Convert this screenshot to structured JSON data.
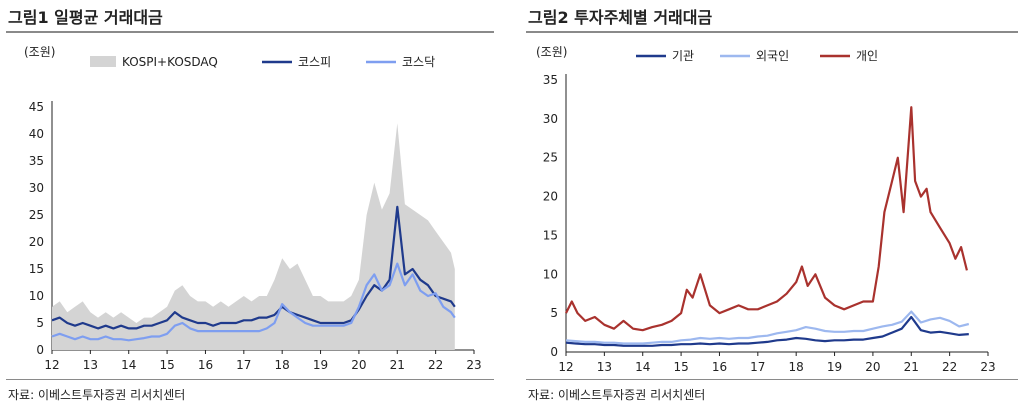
{
  "figures": [
    {
      "title": "그림1 일평균 거래대금",
      "source": "자료: 이베스트투자증권 리서치센터"
    },
    {
      "title": "그림2 투자주체별 거래대금",
      "source": "자료: 이베스트투자증권 리서치센터"
    }
  ],
  "chart_data": [
    {
      "type": "line",
      "unit": "(조원)",
      "x_ticks": [
        "12",
        "13",
        "14",
        "15",
        "16",
        "17",
        "18",
        "19",
        "20",
        "21",
        "22",
        "23"
      ],
      "xlim": [
        12,
        23
      ],
      "ylim": [
        0,
        45
      ],
      "y_ticks": [
        0,
        5,
        10,
        15,
        20,
        25,
        30,
        35,
        40,
        45
      ],
      "legend_placement": "top",
      "series": [
        {
          "name": "KOSPI+KOSDAQ",
          "style": "area",
          "color": "#d4d4d4",
          "x": [
            12.0,
            12.2,
            12.4,
            12.6,
            12.8,
            13.0,
            13.2,
            13.4,
            13.6,
            13.8,
            14.0,
            14.2,
            14.4,
            14.6,
            14.8,
            15.0,
            15.2,
            15.4,
            15.6,
            15.8,
            16.0,
            16.2,
            16.4,
            16.6,
            16.8,
            17.0,
            17.2,
            17.4,
            17.6,
            17.8,
            18.0,
            18.2,
            18.4,
            18.6,
            18.8,
            19.0,
            19.2,
            19.4,
            19.6,
            19.8,
            20.0,
            20.2,
            20.4,
            20.6,
            20.8,
            21.0,
            21.2,
            21.4,
            21.6,
            21.8,
            22.0,
            22.2,
            22.4,
            22.5
          ],
          "values": [
            8,
            9,
            7,
            8,
            9,
            7,
            6,
            7,
            6,
            7,
            6,
            5,
            6,
            6,
            7,
            8,
            11,
            12,
            10,
            9,
            9,
            8,
            9,
            8,
            9,
            10,
            9,
            10,
            10,
            13,
            17,
            15,
            16,
            13,
            10,
            10,
            9,
            9,
            9,
            10,
            13,
            25,
            31,
            26,
            29,
            42,
            27,
            26,
            25,
            24,
            22,
            20,
            18,
            15
          ]
        },
        {
          "name": "코스피",
          "style": "line",
          "color": "#1f3a8c",
          "x": [
            12.0,
            12.2,
            12.4,
            12.6,
            12.8,
            13.0,
            13.2,
            13.4,
            13.6,
            13.8,
            14.0,
            14.2,
            14.4,
            14.6,
            14.8,
            15.0,
            15.2,
            15.4,
            15.6,
            15.8,
            16.0,
            16.2,
            16.4,
            16.6,
            16.8,
            17.0,
            17.2,
            17.4,
            17.6,
            17.8,
            18.0,
            18.2,
            18.4,
            18.6,
            18.8,
            19.0,
            19.2,
            19.4,
            19.6,
            19.8,
            20.0,
            20.2,
            20.4,
            20.6,
            20.8,
            21.0,
            21.2,
            21.4,
            21.6,
            21.8,
            22.0,
            22.2,
            22.4,
            22.5
          ],
          "values": [
            5.5,
            6,
            5,
            4.5,
            5,
            4.5,
            4,
            4.5,
            4,
            4.5,
            4,
            4,
            4.5,
            4.5,
            5,
            5.5,
            7,
            6,
            5.5,
            5,
            5,
            4.5,
            5,
            5,
            5,
            5.5,
            5.5,
            6,
            6,
            6.5,
            8,
            7,
            6.5,
            6,
            5.5,
            5,
            5,
            5,
            5,
            5.5,
            7.5,
            10,
            12,
            11,
            13,
            26.5,
            14,
            15,
            13,
            12,
            10,
            9.5,
            9,
            8
          ]
        },
        {
          "name": "코스닥",
          "style": "line",
          "color": "#7e9ef0",
          "x": [
            12.0,
            12.2,
            12.4,
            12.6,
            12.8,
            13.0,
            13.2,
            13.4,
            13.6,
            13.8,
            14.0,
            14.2,
            14.4,
            14.6,
            14.8,
            15.0,
            15.2,
            15.4,
            15.6,
            15.8,
            16.0,
            16.2,
            16.4,
            16.6,
            16.8,
            17.0,
            17.2,
            17.4,
            17.6,
            17.8,
            18.0,
            18.2,
            18.4,
            18.6,
            18.8,
            19.0,
            19.2,
            19.4,
            19.6,
            19.8,
            20.0,
            20.2,
            20.4,
            20.6,
            20.8,
            21.0,
            21.2,
            21.4,
            21.6,
            21.8,
            22.0,
            22.2,
            22.4,
            22.5
          ],
          "values": [
            2.5,
            3,
            2.5,
            2,
            2.5,
            2,
            2,
            2.5,
            2,
            2,
            1.8,
            2,
            2.2,
            2.5,
            2.5,
            3,
            4.5,
            5,
            4,
            3.5,
            3.5,
            3.5,
            3.5,
            3.5,
            3.5,
            3.5,
            3.5,
            3.5,
            4,
            5,
            8.5,
            7,
            6,
            5,
            4.5,
            4.5,
            4.5,
            4.5,
            4.5,
            5,
            8,
            12,
            14,
            11,
            12,
            16,
            12,
            14,
            11,
            10,
            10.5,
            8,
            7,
            6
          ]
        }
      ]
    },
    {
      "type": "line",
      "unit": "(조원)",
      "x_ticks": [
        "12",
        "13",
        "14",
        "15",
        "16",
        "17",
        "18",
        "19",
        "20",
        "21",
        "22",
        "23"
      ],
      "xlim": [
        12,
        23
      ],
      "ylim": [
        0,
        35
      ],
      "y_ticks": [
        0,
        5,
        10,
        15,
        20,
        25,
        30,
        35
      ],
      "legend_placement": "top",
      "series": [
        {
          "name": "기관",
          "color": "#1f3a8c",
          "x": [
            12.0,
            12.25,
            12.5,
            12.75,
            13.0,
            13.25,
            13.5,
            13.75,
            14.0,
            14.25,
            14.5,
            14.75,
            15.0,
            15.25,
            15.5,
            15.75,
            16.0,
            16.25,
            16.5,
            16.75,
            17.0,
            17.25,
            17.5,
            17.75,
            18.0,
            18.25,
            18.5,
            18.75,
            19.0,
            19.25,
            19.5,
            19.75,
            20.0,
            20.25,
            20.5,
            20.75,
            21.0,
            21.25,
            21.5,
            21.75,
            22.0,
            22.25,
            22.5
          ],
          "values": [
            1.2,
            1.1,
            1.0,
            1.0,
            0.9,
            0.9,
            0.8,
            0.8,
            0.8,
            0.8,
            0.9,
            0.9,
            1.0,
            1.0,
            1.1,
            1.0,
            1.1,
            1.0,
            1.1,
            1.1,
            1.2,
            1.3,
            1.5,
            1.6,
            1.8,
            1.7,
            1.5,
            1.4,
            1.5,
            1.5,
            1.6,
            1.6,
            1.8,
            2.0,
            2.5,
            3.0,
            4.5,
            2.8,
            2.5,
            2.6,
            2.4,
            2.2,
            2.3
          ]
        },
        {
          "name": "외국인",
          "color": "#9db8ef",
          "x": [
            12.0,
            12.25,
            12.5,
            12.75,
            13.0,
            13.25,
            13.5,
            13.75,
            14.0,
            14.25,
            14.5,
            14.75,
            15.0,
            15.25,
            15.5,
            15.75,
            16.0,
            16.25,
            16.5,
            16.75,
            17.0,
            17.25,
            17.5,
            17.75,
            18.0,
            18.25,
            18.5,
            18.75,
            19.0,
            19.25,
            19.5,
            19.75,
            20.0,
            20.25,
            20.5,
            20.75,
            21.0,
            21.25,
            21.5,
            21.75,
            22.0,
            22.25,
            22.5
          ],
          "values": [
            1.5,
            1.4,
            1.3,
            1.3,
            1.2,
            1.2,
            1.1,
            1.1,
            1.1,
            1.2,
            1.3,
            1.3,
            1.5,
            1.6,
            1.8,
            1.7,
            1.8,
            1.7,
            1.8,
            1.8,
            2.0,
            2.1,
            2.4,
            2.6,
            2.8,
            3.2,
            3.0,
            2.7,
            2.6,
            2.6,
            2.7,
            2.7,
            3.0,
            3.3,
            3.5,
            3.9,
            5.2,
            3.8,
            4.2,
            4.4,
            4.0,
            3.3,
            3.6
          ]
        },
        {
          "name": "개인",
          "color": "#a9322e",
          "x": [
            12.0,
            12.15,
            12.3,
            12.5,
            12.75,
            13.0,
            13.25,
            13.5,
            13.75,
            14.0,
            14.25,
            14.5,
            14.75,
            15.0,
            15.15,
            15.3,
            15.5,
            15.75,
            16.0,
            16.25,
            16.5,
            16.75,
            17.0,
            17.25,
            17.5,
            17.75,
            18.0,
            18.15,
            18.3,
            18.5,
            18.75,
            19.0,
            19.25,
            19.5,
            19.75,
            20.0,
            20.15,
            20.3,
            20.5,
            20.65,
            20.8,
            21.0,
            21.1,
            21.25,
            21.4,
            21.5,
            21.75,
            22.0,
            22.15,
            22.3,
            22.45
          ],
          "values": [
            5,
            6.5,
            5,
            4,
            4.5,
            3.5,
            3,
            4,
            3,
            2.8,
            3.2,
            3.5,
            4,
            5,
            8,
            7,
            10,
            6,
            5,
            5.5,
            6,
            5.5,
            5.5,
            6,
            6.5,
            7.5,
            9,
            11,
            8.5,
            10,
            7,
            6,
            5.5,
            6,
            6.5,
            6.5,
            11,
            18,
            22,
            25,
            18,
            31.5,
            22,
            20,
            21,
            18,
            16,
            14,
            12,
            13.5,
            10.5
          ]
        }
      ]
    }
  ]
}
